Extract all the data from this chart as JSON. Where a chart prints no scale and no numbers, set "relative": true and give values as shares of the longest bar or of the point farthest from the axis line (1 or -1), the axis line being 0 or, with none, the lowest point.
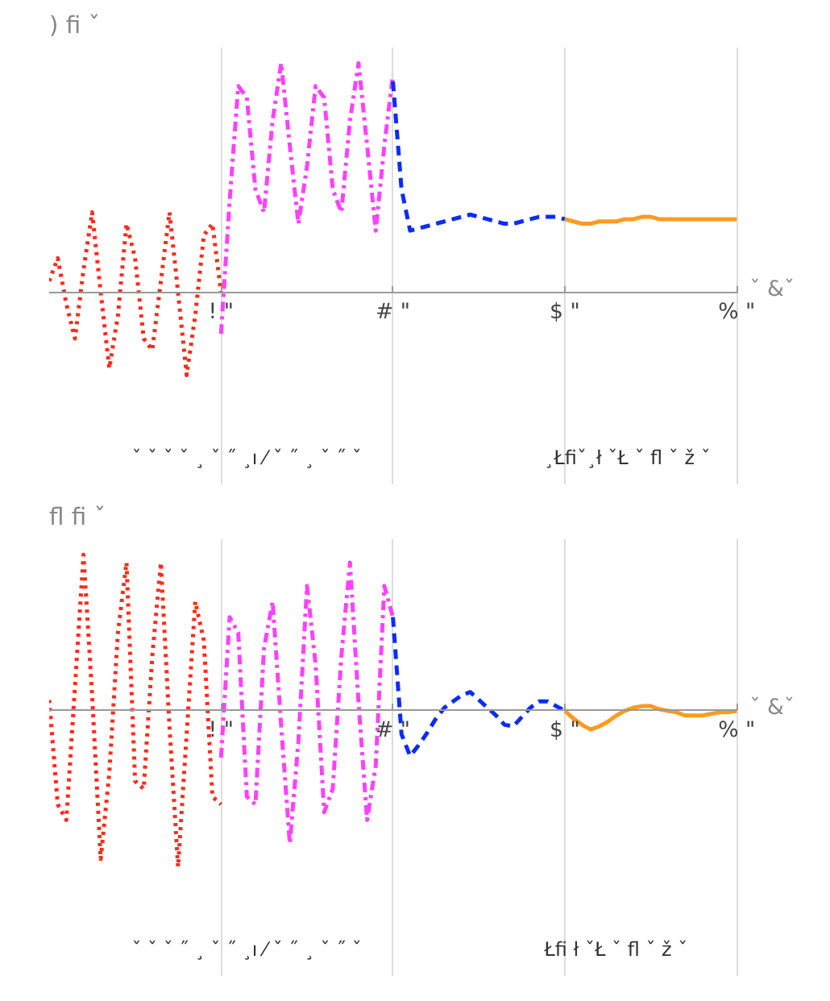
{
  "chart_data": [
    {
      "type": "line",
      "title": ") fi ˇ",
      "xlabel": "ˇ &ˇ",
      "relative": true,
      "grid": "x",
      "categories": [
        null,
        null,
        null,
        null,
        null,
        null,
        null,
        null,
        null,
        null,
        null,
        null,
        null,
        null,
        null,
        null,
        null,
        null,
        null,
        null,
        "! \"",
        null,
        null,
        null,
        null,
        null,
        null,
        null,
        null,
        null,
        null,
        null,
        null,
        null,
        null,
        null,
        null,
        null,
        null,
        null,
        "# \"",
        null,
        null,
        null,
        null,
        null,
        null,
        null,
        null,
        null,
        null,
        null,
        null,
        null,
        null,
        null,
        null,
        null,
        null,
        null,
        "$ \"",
        null,
        null,
        null,
        null,
        null,
        null,
        null,
        null,
        null,
        null,
        null,
        null,
        null,
        null,
        null,
        null,
        null,
        null,
        null,
        "% \""
      ],
      "annotations": [
        "ˇ ˇ ˇ ˇ ¸ ˇ ˝ ¸ı ⁄ ˇ ˝ ¸ ˇ ˝ ˇ",
        "¸Łfiˇ¸ł ˇŁ ˇ fl ˇ ž ˇ"
      ],
      "series": [
        {
          "color": "#ff2a1a",
          "line_style": "dotted",
          "values": [
            0.05,
            0.15,
            -0.05,
            -0.2,
            0.1,
            0.35,
            0,
            -0.33,
            -0.1,
            0.3,
            0.15,
            -0.2,
            -0.25,
            0.05,
            0.35,
            0,
            -0.36,
            -0.1,
            0.25,
            0.3,
            0,
            null,
            null,
            null,
            null,
            null,
            null,
            null,
            null,
            null,
            null,
            null,
            null,
            null,
            null,
            null,
            null,
            null,
            null,
            null,
            null,
            null,
            null,
            null,
            null,
            null,
            null,
            null,
            null,
            null,
            null,
            null,
            null,
            null,
            null,
            null,
            null,
            null,
            null,
            null,
            null,
            null,
            null,
            null,
            null,
            null,
            null,
            null,
            null,
            null,
            null,
            null,
            null,
            null,
            null,
            null,
            null,
            null,
            null,
            null,
            null
          ]
        },
        {
          "color": "#ff40ff",
          "line_style": "dashdot",
          "values": [
            null,
            null,
            null,
            null,
            null,
            null,
            null,
            null,
            null,
            null,
            null,
            null,
            null,
            null,
            null,
            null,
            null,
            null,
            null,
            null,
            -0.18,
            0.4,
            0.9,
            0.85,
            0.45,
            0.35,
            0.75,
            1.0,
            0.64,
            0.3,
            0.55,
            0.9,
            0.85,
            0.45,
            0.35,
            0.75,
            1.0,
            0.64,
            0.27,
            0.64,
            0.95,
            null,
            null,
            null,
            null,
            null,
            null,
            null,
            null,
            null,
            null,
            null,
            null,
            null,
            null,
            null,
            null,
            null,
            null,
            null,
            null,
            null,
            null,
            null,
            null,
            null,
            null,
            null,
            null,
            null,
            null,
            null,
            null,
            null,
            null,
            null,
            null,
            null,
            null,
            null,
            null
          ]
        },
        {
          "color": "#0a2cff",
          "line_style": "dashed",
          "values": [
            null,
            null,
            null,
            null,
            null,
            null,
            null,
            null,
            null,
            null,
            null,
            null,
            null,
            null,
            null,
            null,
            null,
            null,
            null,
            null,
            null,
            null,
            null,
            null,
            null,
            null,
            null,
            null,
            null,
            null,
            null,
            null,
            null,
            null,
            null,
            null,
            null,
            null,
            null,
            null,
            0.92,
            0.45,
            0.27,
            0.28,
            0.29,
            0.3,
            0.31,
            0.32,
            0.33,
            0.34,
            0.33,
            0.32,
            0.31,
            0.3,
            0.3,
            0.31,
            0.32,
            0.33,
            0.33,
            0.33,
            0.32,
            null,
            null,
            null,
            null,
            null,
            null,
            null,
            null,
            null,
            null,
            null,
            null,
            null,
            null,
            null,
            null,
            null,
            null,
            null,
            null
          ]
        },
        {
          "color": "#ff9a1f",
          "line_style": "solid",
          "values": [
            null,
            null,
            null,
            null,
            null,
            null,
            null,
            null,
            null,
            null,
            null,
            null,
            null,
            null,
            null,
            null,
            null,
            null,
            null,
            null,
            null,
            null,
            null,
            null,
            null,
            null,
            null,
            null,
            null,
            null,
            null,
            null,
            null,
            null,
            null,
            null,
            null,
            null,
            null,
            null,
            null,
            null,
            null,
            null,
            null,
            null,
            null,
            null,
            null,
            null,
            null,
            null,
            null,
            null,
            null,
            null,
            null,
            null,
            null,
            null,
            0.32,
            0.31,
            0.3,
            0.3,
            0.31,
            0.31,
            0.31,
            0.32,
            0.32,
            0.33,
            0.33,
            0.32,
            0.32,
            0.32,
            0.32,
            0.32,
            0.32,
            0.32,
            0.32,
            0.32,
            0.32
          ]
        }
      ]
    },
    {
      "type": "line",
      "title": "fl fi ˇ",
      "xlabel": "ˇ &ˇ",
      "relative": true,
      "grid": "x",
      "categories": [
        null,
        null,
        null,
        null,
        null,
        null,
        null,
        null,
        null,
        null,
        null,
        null,
        null,
        null,
        null,
        null,
        null,
        null,
        null,
        null,
        "! \"",
        null,
        null,
        null,
        null,
        null,
        null,
        null,
        null,
        null,
        null,
        null,
        null,
        null,
        null,
        null,
        null,
        null,
        null,
        null,
        "# \"",
        null,
        null,
        null,
        null,
        null,
        null,
        null,
        null,
        null,
        null,
        null,
        null,
        null,
        null,
        null,
        null,
        null,
        null,
        null,
        "$ \"",
        null,
        null,
        null,
        null,
        null,
        null,
        null,
        null,
        null,
        null,
        null,
        null,
        null,
        null,
        null,
        null,
        null,
        null,
        null,
        "% \""
      ],
      "annotations": [
        "ˇ ˇ ˇ ˝ ¸ ˇ ˝ ¸ı ⁄ ˇ ˝ ¸ ˇ ˝ ˇ",
        "Łfi ł ˇŁ ˇ fl ˇ ž ˇ"
      ],
      "series": [
        {
          "color": "#ff2a1a",
          "line_style": "dotted",
          "values": [
            0.07,
            -0.6,
            -0.7,
            0.15,
            1,
            0.1,
            -0.95,
            -0.4,
            0.5,
            0.95,
            -0.45,
            -0.5,
            0.35,
            0.95,
            -0.1,
            -1,
            -0.15,
            0.7,
            0.45,
            -0.55,
            -0.6,
            null,
            null,
            null,
            null,
            null,
            null,
            null,
            null,
            null,
            null,
            null,
            null,
            null,
            null,
            null,
            null,
            null,
            null,
            null,
            null,
            null,
            null,
            null,
            null,
            null,
            null,
            null,
            null,
            null,
            null,
            null,
            null,
            null,
            null,
            null,
            null,
            null,
            null,
            null,
            null,
            null,
            null,
            null,
            null,
            null,
            null,
            null,
            null,
            null,
            null,
            null,
            null,
            null,
            null,
            null,
            null,
            null,
            null,
            null,
            null
          ]
        },
        {
          "color": "#ff40ff",
          "line_style": "dashdot",
          "values": [
            null,
            null,
            null,
            null,
            null,
            null,
            null,
            null,
            null,
            null,
            null,
            null,
            null,
            null,
            null,
            null,
            null,
            null,
            null,
            null,
            -0.3,
            0.6,
            0.5,
            -0.55,
            -0.6,
            0.4,
            0.7,
            -0.1,
            -0.85,
            -0.2,
            0.8,
            0.3,
            -0.65,
            -0.5,
            0.35,
            0.95,
            0.05,
            -0.7,
            -0.35,
            0.8,
            0.6,
            null,
            null,
            null,
            null,
            null,
            null,
            null,
            null,
            null,
            null,
            null,
            null,
            null,
            null,
            null,
            null,
            null,
            null,
            null,
            null,
            null,
            null,
            null,
            null,
            null,
            null,
            null,
            null,
            null,
            null,
            null,
            null,
            null,
            null,
            null,
            null,
            null,
            null,
            null,
            null
          ]
        },
        {
          "color": "#0a2cff",
          "line_style": "dashed",
          "values": [
            null,
            null,
            null,
            null,
            null,
            null,
            null,
            null,
            null,
            null,
            null,
            null,
            null,
            null,
            null,
            null,
            null,
            null,
            null,
            null,
            null,
            null,
            null,
            null,
            null,
            null,
            null,
            null,
            null,
            null,
            null,
            null,
            null,
            null,
            null,
            null,
            null,
            null,
            null,
            null,
            0.6,
            -0.15,
            -0.29,
            -0.22,
            -0.14,
            -0.05,
            0.02,
            0.06,
            0.1,
            0.12,
            0.07,
            0.02,
            -0.03,
            -0.09,
            -0.1,
            -0.04,
            0.02,
            0.06,
            0.06,
            0.03,
            0,
            null,
            null,
            null,
            null,
            null,
            null,
            null,
            null,
            null,
            null,
            null,
            null,
            null,
            null,
            null,
            null,
            null,
            null,
            null,
            null
          ]
        },
        {
          "color": "#ff9a1f",
          "line_style": "solid",
          "values": [
            null,
            null,
            null,
            null,
            null,
            null,
            null,
            null,
            null,
            null,
            null,
            null,
            null,
            null,
            null,
            null,
            null,
            null,
            null,
            null,
            null,
            null,
            null,
            null,
            null,
            null,
            null,
            null,
            null,
            null,
            null,
            null,
            null,
            null,
            null,
            null,
            null,
            null,
            null,
            null,
            null,
            null,
            null,
            null,
            null,
            null,
            null,
            null,
            null,
            null,
            null,
            null,
            null,
            null,
            null,
            null,
            null,
            null,
            null,
            null,
            0,
            -0.05,
            -0.09,
            -0.12,
            -0.1,
            -0.07,
            -0.03,
            0,
            0.02,
            0.03,
            0.03,
            0.01,
            0,
            -0.01,
            -0.03,
            -0.03,
            -0.03,
            -0.02,
            -0.01,
            -0.01,
            0
          ]
        }
      ]
    }
  ]
}
